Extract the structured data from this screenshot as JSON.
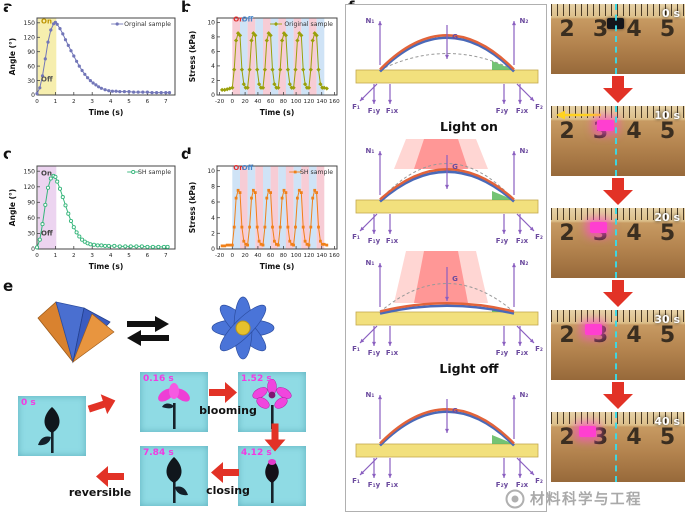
{
  "panels": {
    "a": "a",
    "b": "b",
    "c": "c",
    "d": "d",
    "e": "e",
    "f": "f"
  },
  "chart_data": [
    {
      "type": "line",
      "panel": "a",
      "legend": "Orginal sample",
      "xlabel": "Time (s)",
      "ylabel": "Angle (°)",
      "xlim": [
        0,
        7.5
      ],
      "ylim": [
        0,
        160
      ],
      "xticks": [
        0,
        1,
        2,
        3,
        4,
        5,
        6,
        7
      ],
      "yticks": [
        0,
        30,
        60,
        90,
        120,
        150
      ],
      "color": "#7276b8",
      "marker": "circle",
      "bands": [
        {
          "x0": 0.05,
          "x1": 1.05,
          "color": "#f6eeae"
        }
      ],
      "annotations": [
        {
          "text": "On",
          "x": 0.22,
          "y": 149,
          "color": "#bd9300"
        },
        {
          "text": "Off",
          "x": 0.22,
          "y": 28,
          "color": "#555555"
        }
      ],
      "x": [
        0,
        0.15,
        0.3,
        0.45,
        0.6,
        0.75,
        0.9,
        1,
        1.1,
        1.25,
        1.4,
        1.55,
        1.7,
        1.85,
        2,
        2.15,
        2.3,
        2.45,
        2.6,
        2.75,
        2.9,
        3.05,
        3.2,
        3.35,
        3.5,
        3.7,
        3.9,
        4.1,
        4.3,
        4.5,
        4.75,
        5,
        5.25,
        5.5,
        5.75,
        6,
        6.25,
        6.5,
        6.75,
        7,
        7.2
      ],
      "y": [
        3,
        15,
        40,
        75,
        110,
        135,
        148,
        151,
        147,
        138,
        127,
        115,
        103,
        92,
        81,
        70,
        60,
        51,
        43,
        36,
        30,
        25,
        21,
        17,
        14,
        11,
        9,
        8,
        8,
        7,
        7,
        7,
        6,
        6,
        6,
        6,
        5,
        5,
        5,
        5,
        5
      ]
    },
    {
      "type": "line",
      "panel": "b",
      "legend": "Original sample",
      "xlabel": "Time (s)",
      "ylabel": "Stress (kPa)",
      "xlim": [
        -24,
        164
      ],
      "ylim": [
        0,
        10.6
      ],
      "xticks": [
        -20,
        0,
        20,
        40,
        60,
        80,
        100,
        120,
        140,
        160
      ],
      "yticks": [
        0,
        2,
        4,
        6,
        8,
        10
      ],
      "color": "#9aa00a",
      "marker": "diamond",
      "bands": [
        {
          "x0": 0,
          "x1": 12,
          "color": "#f7ccd5"
        },
        {
          "x0": 12,
          "x1": 24,
          "color": "#cfe3f6"
        },
        {
          "x0": 24,
          "x1": 36,
          "color": "#f7ccd5"
        },
        {
          "x0": 36,
          "x1": 48,
          "color": "#cfe3f6"
        },
        {
          "x0": 48,
          "x1": 60,
          "color": "#f7ccd5"
        },
        {
          "x0": 60,
          "x1": 72,
          "color": "#cfe3f6"
        },
        {
          "x0": 72,
          "x1": 84,
          "color": "#f7ccd5"
        },
        {
          "x0": 84,
          "x1": 96,
          "color": "#cfe3f6"
        },
        {
          "x0": 96,
          "x1": 108,
          "color": "#f7ccd5"
        },
        {
          "x0": 108,
          "x1": 120,
          "color": "#cfe3f6"
        },
        {
          "x0": 120,
          "x1": 132,
          "color": "#f7ccd5"
        },
        {
          "x0": 132,
          "x1": 144,
          "color": "#cfe3f6"
        }
      ],
      "annotations": [
        {
          "text": "On",
          "x": 1.5,
          "y": 10.1,
          "color": "#e03030"
        },
        {
          "text": "Off",
          "x": 14.5,
          "y": 10.1,
          "color": "#4a86c8"
        }
      ],
      "x": [
        -16,
        -12,
        -8,
        -4,
        0,
        3,
        6,
        9,
        12,
        15,
        18,
        21,
        24,
        27,
        30,
        33,
        36,
        39,
        42,
        45,
        48,
        51,
        54,
        57,
        60,
        63,
        66,
        69,
        72,
        75,
        78,
        81,
        84,
        87,
        90,
        93,
        96,
        99,
        102,
        105,
        108,
        111,
        114,
        117,
        120,
        123,
        126,
        129,
        132,
        135,
        138,
        141,
        144,
        148
      ],
      "y": [
        0.7,
        0.7,
        0.8,
        0.9,
        1,
        3.5,
        7.5,
        8.5,
        8.2,
        3.5,
        1.5,
        1,
        1,
        3.5,
        7.5,
        8.5,
        8.2,
        3.5,
        1.5,
        1,
        1,
        3.5,
        7.5,
        8.5,
        8.2,
        3.5,
        1.5,
        1,
        1,
        3.5,
        7.5,
        8.5,
        8.2,
        3.5,
        1.5,
        1,
        1,
        3.5,
        7.5,
        8.5,
        8.2,
        3.5,
        1.5,
        1,
        1,
        3.5,
        7.5,
        8.5,
        8.2,
        3.5,
        1.5,
        1,
        1,
        0.9
      ]
    },
    {
      "type": "line",
      "panel": "c",
      "legend": "SH sample",
      "xlabel": "Time (s)",
      "ylabel": "Angle (°)",
      "xlim": [
        0,
        7.5
      ],
      "ylim": [
        0,
        160
      ],
      "xticks": [
        0,
        1,
        2,
        3,
        4,
        5,
        6,
        7
      ],
      "yticks": [
        0,
        30,
        60,
        90,
        120,
        150
      ],
      "color": "#35b57a",
      "marker": "circle-open",
      "bands": [
        {
          "x0": 0.05,
          "x1": 1.05,
          "color": "#ecd4f0"
        }
      ],
      "annotations": [
        {
          "text": "On",
          "x": 0.22,
          "y": 142,
          "color": "#444444"
        },
        {
          "text": "Off",
          "x": 0.22,
          "y": 26,
          "color": "#444444"
        }
      ],
      "x": [
        0,
        0.15,
        0.3,
        0.45,
        0.6,
        0.75,
        0.9,
        1,
        1.1,
        1.25,
        1.4,
        1.55,
        1.7,
        1.85,
        2,
        2.15,
        2.3,
        2.45,
        2.6,
        2.75,
        2.9,
        3.1,
        3.3,
        3.5,
        3.7,
        3.9,
        4.2,
        4.5,
        4.8,
        5.1,
        5.4,
        5.7,
        6,
        6.3,
        6.6,
        6.9,
        7.1
      ],
      "y": [
        3,
        18,
        48,
        85,
        118,
        136,
        141,
        139,
        130,
        116,
        100,
        84,
        68,
        54,
        42,
        32,
        24,
        18,
        14,
        11,
        9,
        8,
        7,
        7,
        6,
        6,
        6,
        5,
        5,
        5,
        5,
        5,
        4,
        4,
        4,
        4,
        4
      ]
    },
    {
      "type": "line",
      "panel": "d",
      "legend": "SH sample",
      "xlabel": "Time (s)",
      "ylabel": "Stress (kPa)",
      "xlim": [
        -24,
        164
      ],
      "ylim": [
        0,
        10.6
      ],
      "xticks": [
        -20,
        0,
        20,
        40,
        60,
        80,
        100,
        120,
        140,
        160
      ],
      "yticks": [
        0,
        2,
        4,
        6,
        8,
        10
      ],
      "color": "#f08019",
      "marker": "square",
      "bands": [
        {
          "x0": 0,
          "x1": 12,
          "color": "#cfe3f6"
        },
        {
          "x0": 12,
          "x1": 24,
          "color": "#f7ccd5"
        },
        {
          "x0": 24,
          "x1": 36,
          "color": "#cfe3f6"
        },
        {
          "x0": 36,
          "x1": 48,
          "color": "#f7ccd5"
        },
        {
          "x0": 48,
          "x1": 60,
          "color": "#cfe3f6"
        },
        {
          "x0": 60,
          "x1": 72,
          "color": "#f7ccd5"
        },
        {
          "x0": 72,
          "x1": 84,
          "color": "#cfe3f6"
        },
        {
          "x0": 84,
          "x1": 96,
          "color": "#f7ccd5"
        },
        {
          "x0": 96,
          "x1": 108,
          "color": "#cfe3f6"
        },
        {
          "x0": 108,
          "x1": 120,
          "color": "#f7ccd5"
        },
        {
          "x0": 120,
          "x1": 132,
          "color": "#cfe3f6"
        },
        {
          "x0": 132,
          "x1": 144,
          "color": "#f7ccd5"
        }
      ],
      "annotations": [
        {
          "text": "On",
          "x": 1.5,
          "y": 10.1,
          "color": "#e03030"
        },
        {
          "text": "Off",
          "x": 14.5,
          "y": 10.1,
          "color": "#4a86c8"
        }
      ],
      "x": [
        -16,
        -12,
        -8,
        -4,
        0,
        3,
        6,
        9,
        12,
        15,
        18,
        21,
        24,
        27,
        30,
        33,
        36,
        39,
        42,
        45,
        48,
        51,
        54,
        57,
        60,
        63,
        66,
        69,
        72,
        75,
        78,
        81,
        84,
        87,
        90,
        93,
        96,
        99,
        102,
        105,
        108,
        111,
        114,
        117,
        120,
        123,
        126,
        129,
        132,
        135,
        138,
        141,
        144,
        148
      ],
      "y": [
        0.4,
        0.4,
        0.5,
        0.5,
        0.5,
        2.8,
        6.5,
        7.5,
        7.2,
        2.8,
        1,
        0.6,
        0.5,
        2.8,
        6.5,
        7.5,
        7.2,
        2.8,
        1,
        0.6,
        0.5,
        2.8,
        6.5,
        7.5,
        7.2,
        2.8,
        1,
        0.6,
        0.5,
        2.8,
        6.5,
        7.5,
        7.2,
        2.8,
        1,
        0.6,
        0.5,
        2.8,
        6.5,
        7.5,
        7.2,
        2.8,
        1,
        0.6,
        0.5,
        2.8,
        6.5,
        7.5,
        7.2,
        2.8,
        1,
        0.6,
        0.6,
        0.5
      ]
    }
  ],
  "panel_e": {
    "timestamps": [
      "0 s",
      "0.16 s",
      "1.52 s",
      "4.12 s",
      "7.84 s"
    ],
    "blooming": "blooming",
    "closing": "closing",
    "reversible": "reversible"
  },
  "panel_f": {
    "light_on": "Light on",
    "light_off": "Light off",
    "labels": {
      "N1": "N₁",
      "N2": "N₂",
      "G": "G",
      "F1": "F₁",
      "F2": "F₂",
      "F1x": "F₁x",
      "F1y": "F₁y",
      "F2x": "F₂x",
      "F2y": "F₂y"
    }
  },
  "photo_strip": {
    "timestamps": [
      "0 s",
      "10 s",
      "20 s",
      "30 s",
      "40 s"
    ],
    "ruler_numbers": [
      "2",
      "3",
      "4",
      "5"
    ]
  },
  "watermark": "材料科学与工程"
}
